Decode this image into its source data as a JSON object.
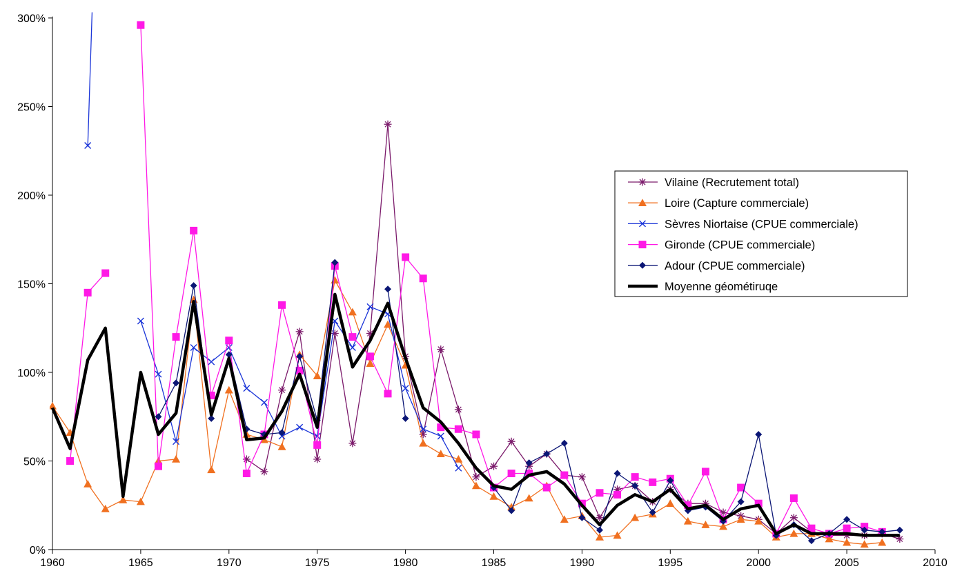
{
  "chart_data": {
    "type": "line",
    "title": "",
    "xlabel": "",
    "ylabel": "",
    "xlim": [
      1960,
      2010
    ],
    "ylim": [
      0,
      3.0
    ],
    "x_ticks": [
      1960,
      1965,
      1970,
      1975,
      1980,
      1985,
      1990,
      1995,
      2000,
      2005,
      2010
    ],
    "y_ticks": [
      0,
      0.5,
      1.0,
      1.5,
      2.0,
      2.5,
      3.0
    ],
    "y_tick_labels": [
      "0%",
      "50%",
      "100%",
      "150%",
      "200%",
      "250%",
      "300%"
    ],
    "grid": false,
    "legend_position": "right",
    "series": [
      {
        "name": "Vilaine (Recrutement total)",
        "color": "#7b1a6b",
        "marker": "asterisk",
        "line_width": 1.3,
        "points": [
          [
            1971,
            0.51
          ],
          [
            1972,
            0.44
          ],
          [
            1973,
            0.9
          ],
          [
            1974,
            1.23
          ],
          [
            1975,
            0.51
          ],
          [
            1976,
            1.22
          ],
          [
            1977,
            0.6
          ],
          [
            1978,
            1.22
          ],
          [
            1979,
            2.4
          ],
          [
            1980,
            1.09
          ],
          [
            1981,
            0.65
          ],
          [
            1982,
            1.13
          ],
          [
            1983,
            0.79
          ],
          [
            1984,
            0.41
          ],
          [
            1985,
            0.47
          ],
          [
            1986,
            0.61
          ],
          [
            1987,
            0.47
          ],
          [
            1988,
            0.54
          ],
          [
            1989,
            0.42
          ],
          [
            1990,
            0.41
          ],
          [
            1991,
            0.18
          ],
          [
            1992,
            0.34
          ],
          [
            1993,
            0.36
          ],
          [
            1994,
            0.27
          ],
          [
            1995,
            0.34
          ],
          [
            1996,
            0.26
          ],
          [
            1997,
            0.26
          ],
          [
            1998,
            0.21
          ],
          [
            1999,
            0.19
          ],
          [
            2000,
            0.17
          ],
          [
            2001,
            0.09
          ],
          [
            2002,
            0.18
          ],
          [
            2003,
            0.1
          ],
          [
            2004,
            0.08
          ],
          [
            2005,
            0.08
          ],
          [
            2006,
            0.08
          ],
          [
            2007,
            0.09
          ],
          [
            2008,
            0.06
          ]
        ]
      },
      {
        "name": "Loire (Capture commerciale)",
        "color": "#f07020",
        "marker": "triangle",
        "line_width": 1.3,
        "points": [
          [
            1960,
            0.81
          ],
          [
            1961,
            0.66
          ],
          [
            1962,
            0.37
          ],
          [
            1963,
            0.23
          ],
          [
            1964,
            0.28
          ],
          [
            1965,
            0.27
          ],
          [
            1966,
            0.5
          ],
          [
            1967,
            0.51
          ],
          [
            1968,
            1.41
          ],
          [
            1969,
            0.45
          ],
          [
            1970,
            0.9
          ],
          [
            1971,
            0.65
          ],
          [
            1972,
            0.62
          ],
          [
            1973,
            0.58
          ],
          [
            1974,
            1.1
          ],
          [
            1975,
            0.98
          ],
          [
            1976,
            1.52
          ],
          [
            1977,
            1.34
          ],
          [
            1978,
            1.05
          ],
          [
            1979,
            1.27
          ],
          [
            1980,
            1.04
          ],
          [
            1981,
            0.6
          ],
          [
            1982,
            0.54
          ],
          [
            1983,
            0.51
          ],
          [
            1984,
            0.36
          ],
          [
            1985,
            0.3
          ],
          [
            1986,
            0.24
          ],
          [
            1987,
            0.29
          ],
          [
            1988,
            0.36
          ],
          [
            1989,
            0.17
          ],
          [
            1990,
            0.19
          ],
          [
            1991,
            0.07
          ],
          [
            1992,
            0.08
          ],
          [
            1993,
            0.18
          ],
          [
            1994,
            0.2
          ],
          [
            1995,
            0.26
          ],
          [
            1996,
            0.16
          ],
          [
            1997,
            0.14
          ],
          [
            1998,
            0.13
          ],
          [
            1999,
            0.17
          ],
          [
            2000,
            0.16
          ],
          [
            2001,
            0.07
          ],
          [
            2002,
            0.09
          ],
          [
            2003,
            0.09
          ],
          [
            2004,
            0.06
          ],
          [
            2005,
            0.04
          ],
          [
            2006,
            0.03
          ],
          [
            2007,
            0.04
          ]
        ]
      },
      {
        "name": "Sèvres Niortaise (CPUE commerciale)",
        "color": "#1b35d8",
        "marker": "x",
        "line_width": 1.3,
        "points": [
          [
            1962,
            2.28
          ],
          [
            1962.25,
            3.05
          ],
          null,
          [
            1965,
            1.29
          ],
          [
            1966,
            0.99
          ],
          [
            1967,
            0.61
          ],
          [
            1968,
            1.14
          ],
          [
            1969,
            1.06
          ],
          [
            1970,
            1.14
          ],
          [
            1971,
            0.91
          ],
          [
            1972,
            0.83
          ],
          [
            1973,
            0.64
          ],
          [
            1974,
            0.69
          ],
          [
            1975,
            0.64
          ],
          [
            1976,
            1.29
          ],
          [
            1977,
            1.14
          ],
          [
            1978,
            1.37
          ],
          [
            1979,
            1.33
          ],
          [
            1980,
            0.91
          ],
          [
            1981,
            0.68
          ],
          [
            1982,
            0.64
          ],
          [
            1983,
            0.46
          ]
        ]
      },
      {
        "name": "Gironde (CPUE commerciale)",
        "color": "#ff19e6",
        "marker": "square",
        "line_width": 1.3,
        "points": [
          [
            1961,
            0.5
          ],
          [
            1962,
            1.45
          ],
          [
            1963,
            1.56
          ],
          null,
          [
            1965,
            2.96
          ],
          [
            1966,
            0.47
          ],
          [
            1967,
            1.2
          ],
          [
            1968,
            1.8
          ],
          [
            1969,
            0.87
          ],
          [
            1970,
            1.18
          ],
          [
            1971,
            0.43
          ],
          [
            1972,
            0.65
          ],
          [
            1973,
            1.38
          ],
          [
            1974,
            1.01
          ],
          [
            1975,
            0.59
          ],
          [
            1976,
            1.6
          ],
          [
            1977,
            1.2
          ],
          [
            1978,
            1.09
          ],
          [
            1979,
            0.88
          ],
          [
            1980,
            1.65
          ],
          [
            1981,
            1.53
          ],
          [
            1982,
            0.69
          ],
          [
            1983,
            0.68
          ],
          [
            1984,
            0.65
          ],
          [
            1985,
            0.35
          ],
          [
            1986,
            0.43
          ],
          [
            1987,
            0.43
          ],
          [
            1988,
            0.35
          ],
          [
            1989,
            0.42
          ],
          [
            1990,
            0.26
          ],
          [
            1991,
            0.32
          ],
          [
            1992,
            0.31
          ],
          [
            1993,
            0.41
          ],
          [
            1994,
            0.38
          ],
          [
            1995,
            0.4
          ],
          [
            1996,
            0.25
          ],
          [
            1997,
            0.44
          ],
          [
            1998,
            0.17
          ],
          [
            1999,
            0.35
          ],
          [
            2000,
            0.26
          ],
          [
            2001,
            0.09
          ],
          [
            2002,
            0.29
          ],
          [
            2003,
            0.12
          ],
          [
            2004,
            0.09
          ],
          [
            2005,
            0.12
          ],
          [
            2006,
            0.13
          ],
          [
            2007,
            0.1
          ]
        ]
      },
      {
        "name": "Adour (CPUE commerciale)",
        "color": "#0b1675",
        "marker": "diamond",
        "line_width": 1.3,
        "points": [
          [
            1966,
            0.75
          ],
          [
            1967,
            0.94
          ],
          [
            1968,
            1.49
          ],
          [
            1969,
            0.74
          ],
          [
            1970,
            1.1
          ],
          [
            1971,
            0.68
          ],
          [
            1972,
            0.65
          ],
          [
            1973,
            0.66
          ],
          [
            1974,
            1.09
          ],
          [
            1975,
            0.73
          ],
          [
            1976,
            1.62
          ],
          null,
          [
            1979,
            1.47
          ],
          [
            1980,
            0.74
          ],
          null,
          [
            1985,
            0.35
          ],
          [
            1986,
            0.22
          ],
          [
            1987,
            0.49
          ],
          [
            1988,
            0.54
          ],
          [
            1989,
            0.6
          ],
          [
            1990,
            0.18
          ],
          [
            1991,
            0.11
          ],
          [
            1992,
            0.43
          ],
          [
            1993,
            0.36
          ],
          [
            1994,
            0.21
          ],
          [
            1995,
            0.39
          ],
          [
            1996,
            0.22
          ],
          [
            1997,
            0.24
          ],
          [
            1998,
            0.16
          ],
          [
            1999,
            0.27
          ],
          [
            2000,
            0.65
          ],
          [
            2001,
            0.08
          ],
          [
            2002,
            0.14
          ],
          [
            2003,
            0.05
          ],
          [
            2004,
            0.09
          ],
          [
            2005,
            0.17
          ],
          [
            2006,
            0.11
          ],
          [
            2007,
            0.1
          ],
          [
            2008,
            0.11
          ]
        ]
      },
      {
        "name": "Moyenne géométiruqe",
        "color": "#000000",
        "marker": "none",
        "line_width": 4.5,
        "points": [
          [
            1960,
            0.8
          ],
          [
            1961,
            0.57
          ],
          [
            1962,
            1.07
          ],
          [
            1963,
            1.25
          ],
          [
            1964,
            0.3
          ],
          [
            1965,
            1.0
          ],
          [
            1966,
            0.65
          ],
          [
            1967,
            0.77
          ],
          [
            1968,
            1.4
          ],
          [
            1969,
            0.76
          ],
          [
            1970,
            1.08
          ],
          [
            1971,
            0.62
          ],
          [
            1972,
            0.63
          ],
          [
            1973,
            0.78
          ],
          [
            1974,
            0.99
          ],
          [
            1975,
            0.69
          ],
          [
            1976,
            1.44
          ],
          [
            1977,
            1.03
          ],
          [
            1978,
            1.18
          ],
          [
            1979,
            1.39
          ],
          [
            1980,
            1.08
          ],
          [
            1981,
            0.8
          ],
          [
            1982,
            0.72
          ],
          [
            1983,
            0.6
          ],
          [
            1984,
            0.46
          ],
          [
            1985,
            0.36
          ],
          [
            1986,
            0.34
          ],
          [
            1987,
            0.42
          ],
          [
            1988,
            0.44
          ],
          [
            1989,
            0.37
          ],
          [
            1990,
            0.25
          ],
          [
            1991,
            0.14
          ],
          [
            1992,
            0.25
          ],
          [
            1993,
            0.31
          ],
          [
            1994,
            0.27
          ],
          [
            1995,
            0.34
          ],
          [
            1996,
            0.23
          ],
          [
            1997,
            0.25
          ],
          [
            1998,
            0.17
          ],
          [
            1999,
            0.23
          ],
          [
            2000,
            0.25
          ],
          [
            2001,
            0.09
          ],
          [
            2002,
            0.14
          ],
          [
            2003,
            0.09
          ],
          [
            2004,
            0.09
          ],
          [
            2005,
            0.09
          ],
          [
            2006,
            0.08
          ],
          [
            2007,
            0.08
          ],
          [
            2008,
            0.08
          ]
        ]
      }
    ]
  }
}
